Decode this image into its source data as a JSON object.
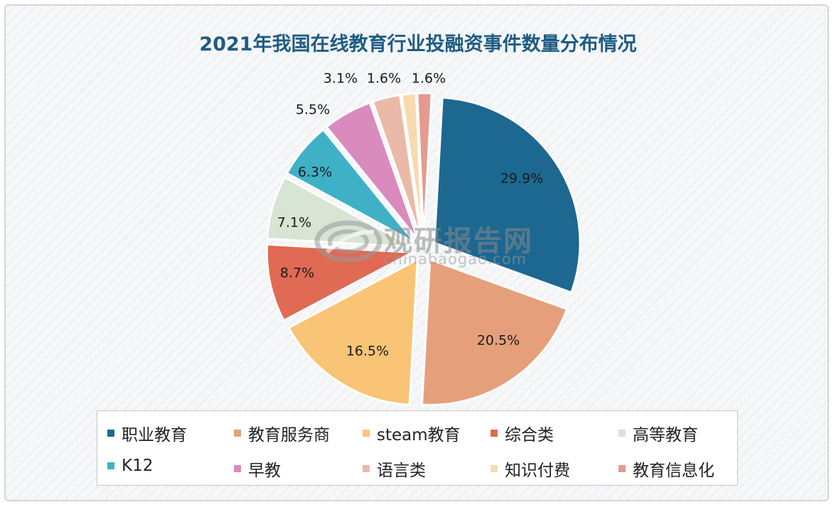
{
  "chart_data": {
    "type": "pie",
    "title": "2021年我国在线教育行业投融资事件数量分布情况",
    "categories": [
      "职业教育",
      "教育服务商",
      "steam教育",
      "综合类",
      "高等教育",
      "K12",
      "早教",
      "语言类",
      "知识付费",
      "教育信息化"
    ],
    "values": [
      29.9,
      20.5,
      16.5,
      8.7,
      7.1,
      6.3,
      5.5,
      3.1,
      1.6,
      1.6
    ],
    "labels": [
      "29.9%",
      "20.5%",
      "16.5%",
      "8.7%",
      "7.1%",
      "6.3%",
      "5.5%",
      "3.1%",
      "1.6%",
      "1.6%"
    ],
    "colors": [
      "#1c6891",
      "#e5a07b",
      "#f9c476",
      "#e06a54",
      "#d8e4d4",
      "#3fb1c6",
      "#d98bbd",
      "#ebb9a8",
      "#f7dab0",
      "#e49b8e"
    ],
    "legend_position": "bottom",
    "exploded": true
  },
  "watermark": {
    "name": "观研报告网",
    "site": "chinabaogao.com"
  }
}
